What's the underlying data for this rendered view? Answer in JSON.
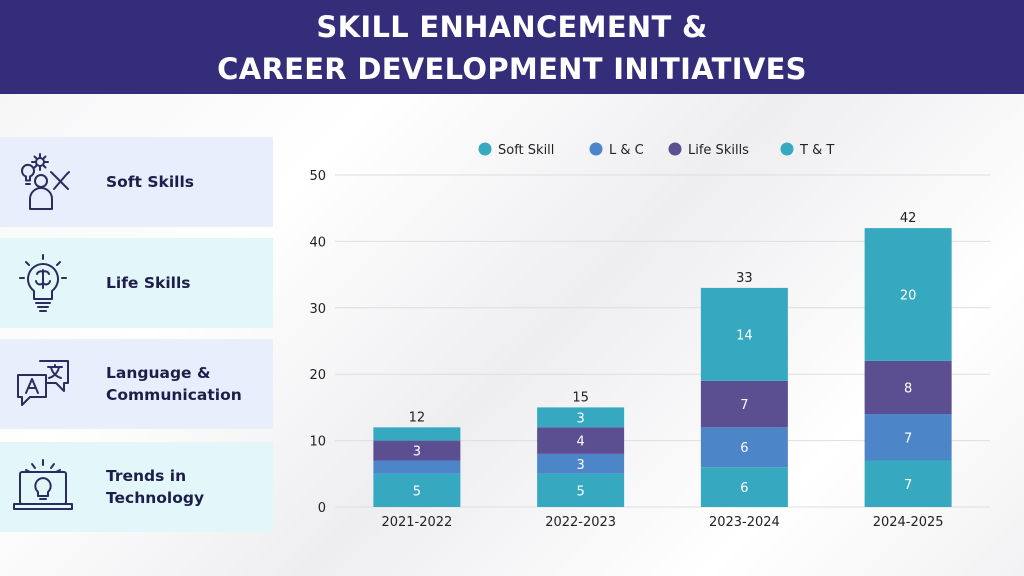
{
  "header": {
    "line1": "SKILL ENHANCEMENT &",
    "line2": "CAREER DEVELOPMENT INITIATIVES"
  },
  "cards": [
    {
      "label": "Soft Skills",
      "icon": "soft-skills-icon"
    },
    {
      "label": "Life Skills",
      "icon": "brain-lightbulb-icon"
    },
    {
      "label": "Language &\nCommunication",
      "icon": "translation-speech-icon"
    },
    {
      "label": "Trends in\nTechnology",
      "icon": "laptop-lightbulb-icon"
    }
  ],
  "colors": {
    "banner": "#332d7a",
    "soft_skill": "#36a9c1",
    "l_c": "#4d86c8",
    "life_skills": "#5b4f92",
    "t_t": "#36a9c1",
    "icon_stroke": "#2b2d5e"
  },
  "chart_data": {
    "type": "bar",
    "stacked": true,
    "categories": [
      "2021-2022",
      "2022-2023",
      "2023-2024",
      "2024-2025"
    ],
    "series": [
      {
        "name": "Soft Skill",
        "color": "#36a9c1",
        "values": [
          5,
          5,
          6,
          7
        ]
      },
      {
        "name": "L & C",
        "color": "#4d86c8",
        "values": [
          2,
          3,
          6,
          7
        ]
      },
      {
        "name": "Life Skills",
        "color": "#5b4f92",
        "values": [
          3,
          4,
          7,
          8
        ]
      },
      {
        "name": "T & T",
        "color": "#36a9c1",
        "values": [
          2,
          3,
          14,
          20
        ]
      }
    ],
    "segment_labels": [
      [
        "5",
        "",
        "3",
        ""
      ],
      [
        "5",
        "3",
        "4",
        "3"
      ],
      [
        "6",
        "6",
        "7",
        "14"
      ],
      [
        "7",
        "7",
        "8",
        "20"
      ]
    ],
    "totals": [
      12,
      15,
      33,
      42
    ],
    "ylim": [
      0,
      50
    ],
    "yticks": [
      0,
      10,
      20,
      30,
      40,
      50
    ],
    "grid": true,
    "legend_position": "top"
  }
}
